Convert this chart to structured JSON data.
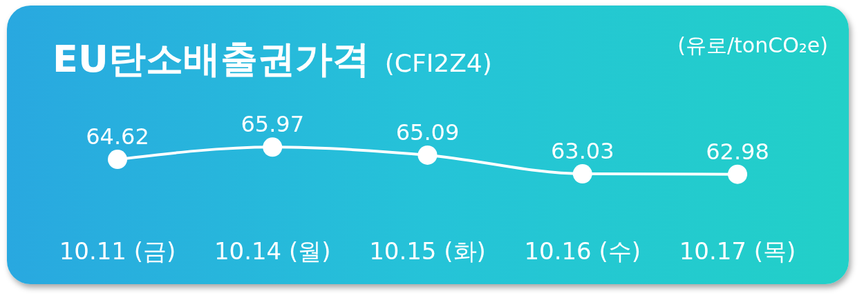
{
  "chart_data": {
    "type": "line",
    "title": "EU탄소배출권가격",
    "subtitle": "(CFI2Z4)",
    "ylabel": "(유로/tonCO₂e)",
    "categories": [
      "10.11 (금)",
      "10.14 (월)",
      "10.15 (화)",
      "10.16 (수)",
      "10.17 (목)"
    ],
    "series": [
      {
        "color": "#ffffff",
        "values": [
          64.62,
          65.97,
          65.09,
          63.03,
          62.98
        ]
      }
    ],
    "data_labels": true,
    "marker": "circle",
    "line_style": "solid",
    "tick_labels": "x"
  }
}
